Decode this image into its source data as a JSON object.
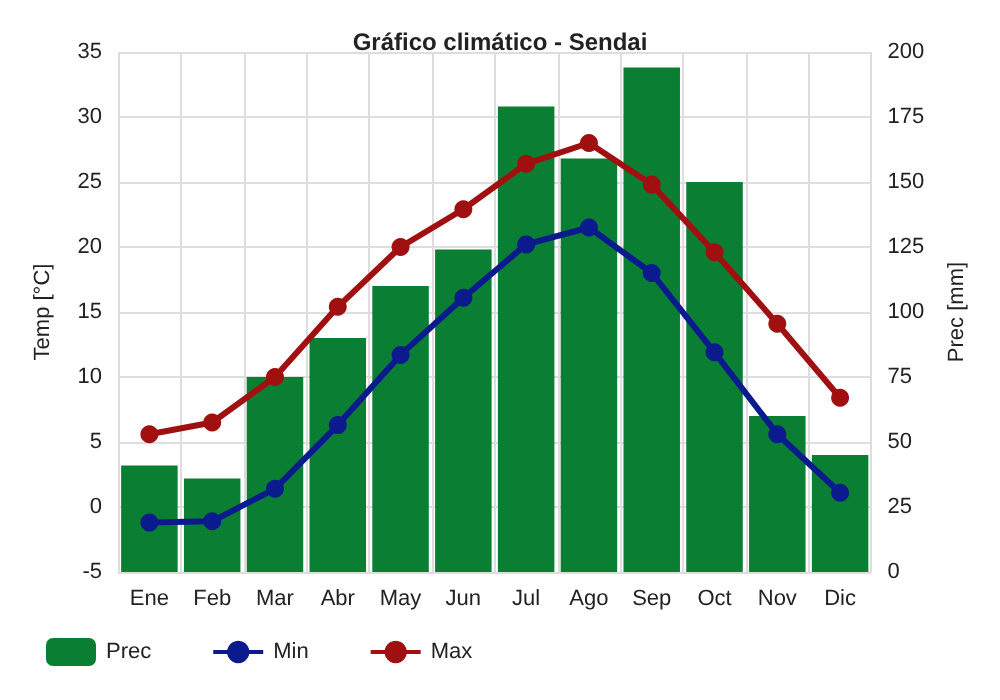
{
  "chart_data": {
    "type": "line",
    "title": "Gráfico climático - Sendai",
    "ylabel": "Temp [°C]",
    "y2label": "Prec [mm]",
    "categories": [
      "Ene",
      "Feb",
      "Mar",
      "Abr",
      "May",
      "Jun",
      "Jul",
      "Ago",
      "Sep",
      "Oct",
      "Nov",
      "Dic"
    ],
    "series": [
      {
        "name": "Prec",
        "type": "bar",
        "axis": "y2",
        "color": "#0a7f33",
        "values": [
          41,
          36,
          75,
          90,
          110,
          124,
          179,
          159,
          194,
          150,
          60,
          45
        ]
      },
      {
        "name": "Min",
        "color": "#0b1a8c",
        "marker": "circle",
        "values": [
          -1.2,
          -1.1,
          1.4,
          6.3,
          11.7,
          16.1,
          20.2,
          21.5,
          18.0,
          11.9,
          5.6,
          1.1
        ]
      },
      {
        "name": "Max",
        "color": "#a01010",
        "marker": "circle",
        "values": [
          5.6,
          6.5,
          10.0,
          15.4,
          20.0,
          22.9,
          26.4,
          28.0,
          24.8,
          19.6,
          14.1,
          8.4
        ]
      }
    ],
    "ylim": [
      -5,
      35
    ],
    "yticks": [
      -5,
      0,
      5,
      10,
      15,
      20,
      25,
      30,
      35
    ],
    "y2lim": [
      0,
      200
    ],
    "y2ticks": [
      0,
      25,
      50,
      75,
      100,
      125,
      150,
      175,
      200
    ],
    "grid": true,
    "legend": "bottom"
  }
}
